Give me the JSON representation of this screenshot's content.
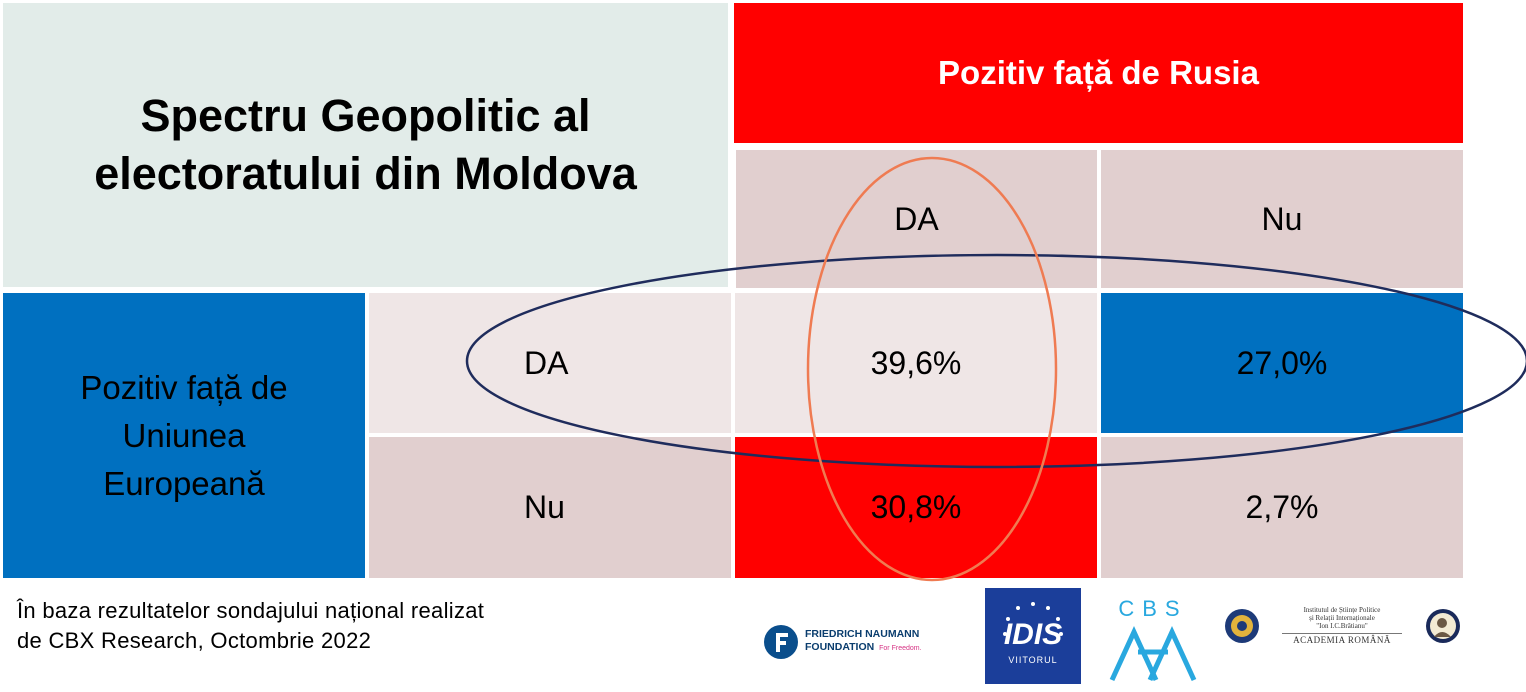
{
  "title_lines": [
    "Spectru Geopolitic al",
    "electoratului din Moldova"
  ],
  "column_group_header": "Pozitiv față de Rusia",
  "column_headers": [
    "DA",
    "Nu"
  ],
  "row_group_header_lines": [
    "Pozitiv față de",
    "Uniunea",
    "Europeană"
  ],
  "row_headers": [
    "DA",
    "Nu"
  ],
  "chart_data": {
    "type": "table",
    "title": "Spectru Geopolitic al electoratului din Moldova",
    "column_dimension": "Pozitiv față de Rusia",
    "row_dimension": "Pozitiv față de Uniunea Europeană",
    "columns": [
      "DA",
      "Nu"
    ],
    "rows": [
      "DA",
      "Nu"
    ],
    "values": [
      [
        39.6,
        27.0
      ],
      [
        30.8,
        2.7
      ]
    ],
    "value_labels": [
      [
        "39,6%",
        "27,0%"
      ],
      [
        "30,8%",
        "2,7%"
      ]
    ],
    "cell_colors": [
      [
        "#efe6e6",
        "#0070c0"
      ],
      [
        "#ff0000",
        "#e1cfcf"
      ]
    ]
  },
  "source_lines": [
    "În baza rezultatelor sondajului național realizat",
    "de CBX Research, Octombrie 2022"
  ],
  "logos": {
    "fnf_line1": "FRIEDRICH NAUMANN",
    "fnf_line2": "FOUNDATION",
    "fnf_tag": "For Freedom.",
    "idis_name": "IDIS",
    "idis_sub": "VIITORUL",
    "cbs_name": "CBS",
    "ispri_line1": "Institutul de Științe Politice",
    "ispri_line2": "și Relații Internaționale",
    "ispri_line3": "\"Ion I.C.Brătianu\"",
    "ispri_line4": "ACADEMIA ROMÂNĂ"
  },
  "colors": {
    "red": "#ff0000",
    "blue": "#0070c0",
    "navy_ellipse": "#1f2c5c",
    "orange_ellipse": "#ef7b52"
  }
}
